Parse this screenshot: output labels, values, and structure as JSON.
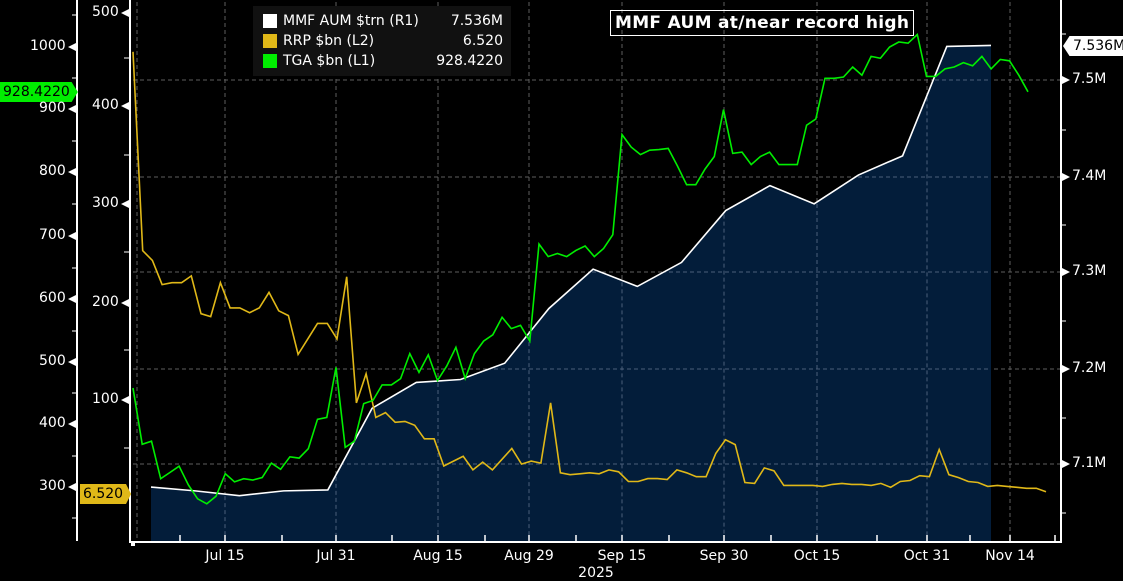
{
  "title": "MMF AUM at/near record high",
  "legend": [
    {
      "label": "MMF AUM $trn (R1)",
      "value": "7.536M",
      "color": "#ffffff"
    },
    {
      "label": "RRP $bn (L2)",
      "value": "6.520",
      "color": "#e0b818"
    },
    {
      "label": "TGA $bn (L1)",
      "value": "928.4220",
      "color": "#00ee00"
    }
  ],
  "tags": {
    "tga_last": "928.4220",
    "rrp_last": "6.520",
    "mmf_last": "7.536M"
  },
  "axes": {
    "left1": [
      "1000",
      "900",
      "800",
      "700",
      "600",
      "500",
      "400",
      "300"
    ],
    "left2": [
      "500",
      "400",
      "300",
      "200",
      "100"
    ],
    "right1": [
      "7.5M",
      "7.4M",
      "7.3M",
      "7.2M",
      "7.1M"
    ],
    "x": [
      "Jul 15",
      "Jul 31",
      "Aug 15",
      "Aug 29",
      "Sep 15",
      "Sep 30",
      "Oct 15",
      "Oct 31",
      "Nov 14"
    ],
    "year": "2025"
  },
  "colors": {
    "background": "#000000",
    "area_fill": "#031d3a",
    "mmf": "#ffffff",
    "rrp": "#e0b818",
    "tga": "#00ee00",
    "grid": "#6a6a6a"
  },
  "chart_data": {
    "type": "line",
    "title": "MMF AUM at/near record high",
    "xlabel": "2025",
    "x_ticks": [
      "Jul 15",
      "Jul 31",
      "Aug 15",
      "Aug 29",
      "Sep 15",
      "Sep 30",
      "Oct 15",
      "Oct 31",
      "Nov 14"
    ],
    "grid": true,
    "legend_position": "top-left",
    "series": [
      {
        "name": "MMF AUM $trn (R1)",
        "axis": "right",
        "style": "area",
        "ylim": [
          7.04,
          7.56
        ],
        "unit": "M",
        "points": [
          [
            "Jul 2",
            7.076
          ],
          [
            "Jul 9",
            7.072
          ],
          [
            "Jul 16",
            7.067
          ],
          [
            "Jul 23",
            7.072
          ],
          [
            "Jul 30",
            7.073
          ],
          [
            "Aug 6",
            7.158
          ],
          [
            "Aug 13",
            7.185
          ],
          [
            "Aug 20",
            7.188
          ],
          [
            "Aug 27",
            7.205
          ],
          [
            "Sep 3",
            7.262
          ],
          [
            "Sep 10",
            7.303
          ],
          [
            "Sep 17",
            7.285
          ],
          [
            "Sep 24",
            7.31
          ],
          [
            "Oct 1",
            7.364
          ],
          [
            "Oct 8",
            7.39
          ],
          [
            "Oct 15",
            7.371
          ],
          [
            "Oct 22",
            7.401
          ],
          [
            "Oct 29",
            7.421
          ],
          [
            "Nov 5",
            7.535
          ],
          [
            "Nov 12",
            7.536
          ]
        ],
        "last": 7.536
      },
      {
        "name": "RRP $bn (L2)",
        "axis": "left2",
        "ylim": [
          0,
          510
        ],
        "points_summary": "Starts ~460 on Jul 1, drops to ~255 by Jul 3, ranges ~160-235 through July, spike ~215 Jul 31, falls to ~50-100 in Aug, ~20-40 Sep-Nov with spikes ~100 (Aug 29), ~70 (Sep 30), ~50 (Oct 31)",
        "values": [
          460,
          255,
          245,
          220,
          222,
          222,
          229,
          190,
          187,
          222,
          196,
          196,
          191,
          196,
          212,
          193,
          188,
          148,
          164,
          180,
          180,
          164,
          228,
          98,
          128,
          83,
          88,
          78,
          79,
          75,
          61,
          61,
          33,
          38,
          43,
          29,
          37,
          29,
          40,
          51,
          35,
          38,
          36,
          98,
          26,
          24,
          25,
          26,
          25,
          29,
          27,
          17,
          17,
          20,
          20,
          19,
          29,
          26,
          22,
          22,
          46,
          60,
          55,
          16,
          15,
          31,
          28,
          13,
          13,
          13,
          13,
          12,
          14,
          15,
          14,
          14,
          13,
          15,
          11,
          17,
          18,
          23,
          22,
          50,
          24,
          21,
          17,
          16,
          12,
          13,
          12,
          11,
          10,
          10,
          6.52
        ],
        "last": 6.52
      },
      {
        "name": "TGA $bn (L1)",
        "axis": "left1",
        "ylim": [
          230,
          1060
        ],
        "points_summary": "Starts ~455 Jul 1, dips to ~300 mid-July, rises to ~490 Jul 31, ~380-570 through Aug, jumps to ~690 end Aug, ~860 mid-Sep, ~900 Sep 30, ~850 early Oct, ~970 late Oct, ~1000 peak, ~930 at end",
        "values": [
          455,
          365,
          370,
          310,
          320,
          330,
          300,
          278,
          270,
          282,
          318,
          305,
          310,
          308,
          312,
          335,
          325,
          345,
          343,
          358,
          405,
          408,
          488,
          360,
          370,
          430,
          435,
          460,
          460,
          470,
          510,
          480,
          508,
          467,
          490,
          520,
          470,
          510,
          530,
          540,
          568,
          550,
          555,
          530,
          685,
          665,
          670,
          665,
          675,
          682,
          665,
          678,
          700,
          860,
          840,
          828,
          835,
          836,
          838,
          810,
          780,
          780,
          805,
          825,
          900,
          830,
          832,
          812,
          825,
          832,
          812,
          812,
          812,
          875,
          885,
          950,
          950,
          952,
          968,
          955,
          985,
          982,
          1000,
          1008,
          1006,
          1020,
          953,
          953,
          965,
          968,
          975,
          970,
          985,
          965,
          980,
          978,
          955,
          928.42
        ],
        "last": 928.422
      }
    ]
  }
}
